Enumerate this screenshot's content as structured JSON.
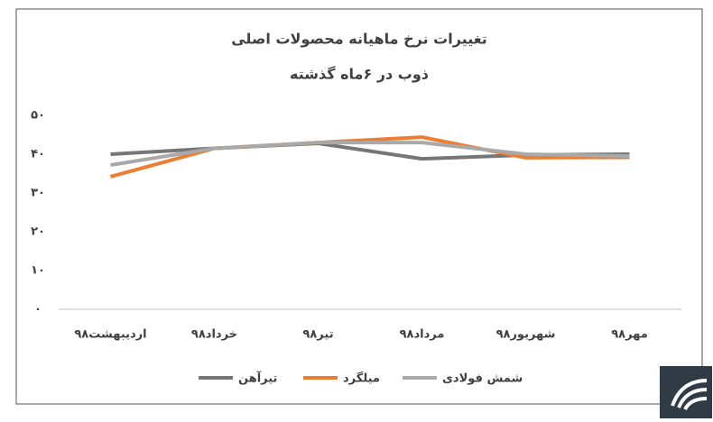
{
  "chart_data": {
    "type": "line",
    "title": [
      "تغییرات نرخ ماهیانه محصولات اصلی",
      "ذوب در ۶ماه گذشته"
    ],
    "categories": [
      "اردیبهشت۹۸",
      "خرداد۹۸",
      "تیر۹۸",
      "مرداد۹۸",
      "شهریور۹۸",
      "مهر۹۸"
    ],
    "series": [
      {
        "name": "تیرآهن",
        "color": "#767676",
        "values": [
          40,
          41.5,
          42.8,
          38.8,
          39.8,
          40
        ]
      },
      {
        "name": "میلگرد",
        "color": "#ed7d31",
        "values": [
          34.2,
          41.5,
          43,
          44.4,
          39.1,
          39.2
        ]
      },
      {
        "name": "شمش فولادی",
        "color": "#a9a9a9",
        "values": [
          37.2,
          41.5,
          43,
          43,
          40,
          39.5
        ]
      }
    ],
    "ylim": [
      0,
      50
    ],
    "yticks": [
      {
        "value": 0,
        "label": "۰"
      },
      {
        "value": 10,
        "label": "۱۰"
      },
      {
        "value": 20,
        "label": "۲۰"
      },
      {
        "value": 30,
        "label": "۳۰"
      },
      {
        "value": 40,
        "label": "۴۰"
      },
      {
        "value": 50,
        "label": "۵۰"
      }
    ],
    "grid": false
  }
}
